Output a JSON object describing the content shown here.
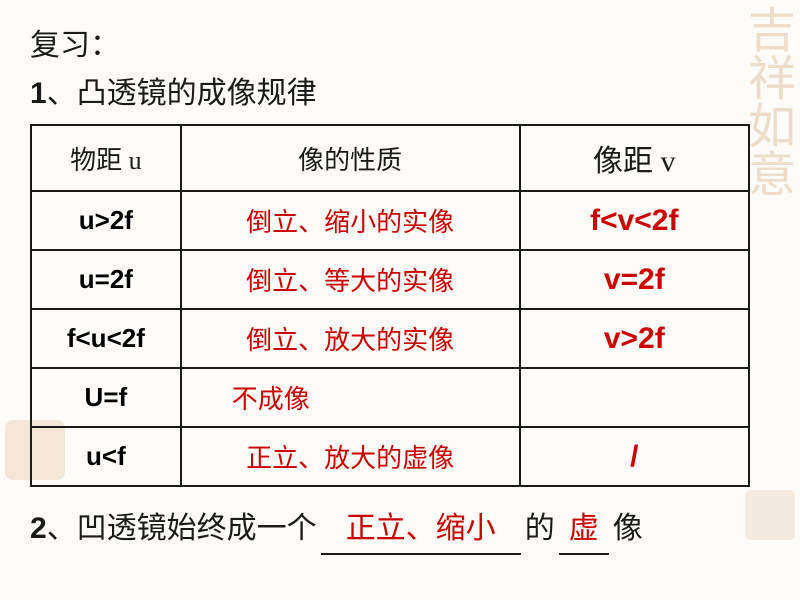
{
  "review_label": "复习：",
  "heading1_num": "1",
  "heading1_text": "、凸透镜的成像规律",
  "table": {
    "headers": {
      "col1": "物距  u",
      "col2": "像的性质",
      "col3": "像距  v"
    },
    "rows": [
      {
        "u": "u>2f",
        "prop": "倒立、缩小的实像",
        "v": "f<v<2f"
      },
      {
        "u": "u=2f",
        "prop": "倒立、等大的实像",
        "v": "v=2f"
      },
      {
        "u": "f<u<2f",
        "prop": "倒立、放大的实像",
        "v": "v>2f"
      },
      {
        "u": "U=f",
        "prop": "不成像",
        "v": ""
      },
      {
        "u": "u<f",
        "prop": "正立、放大的虚像",
        "v": "/"
      }
    ]
  },
  "sentence2": {
    "num": "2",
    "prefix": "、凹透镜始终成一个",
    "blank1": "正立、缩小",
    "mid": "的",
    "blank2": "虚",
    "suffix": "像"
  },
  "watermark_tr": "吉祥如意",
  "colors": {
    "text": "#1a1a1a",
    "answer": "#cc0000",
    "watermark": "#d4a574",
    "background": "#fdfcf8"
  }
}
